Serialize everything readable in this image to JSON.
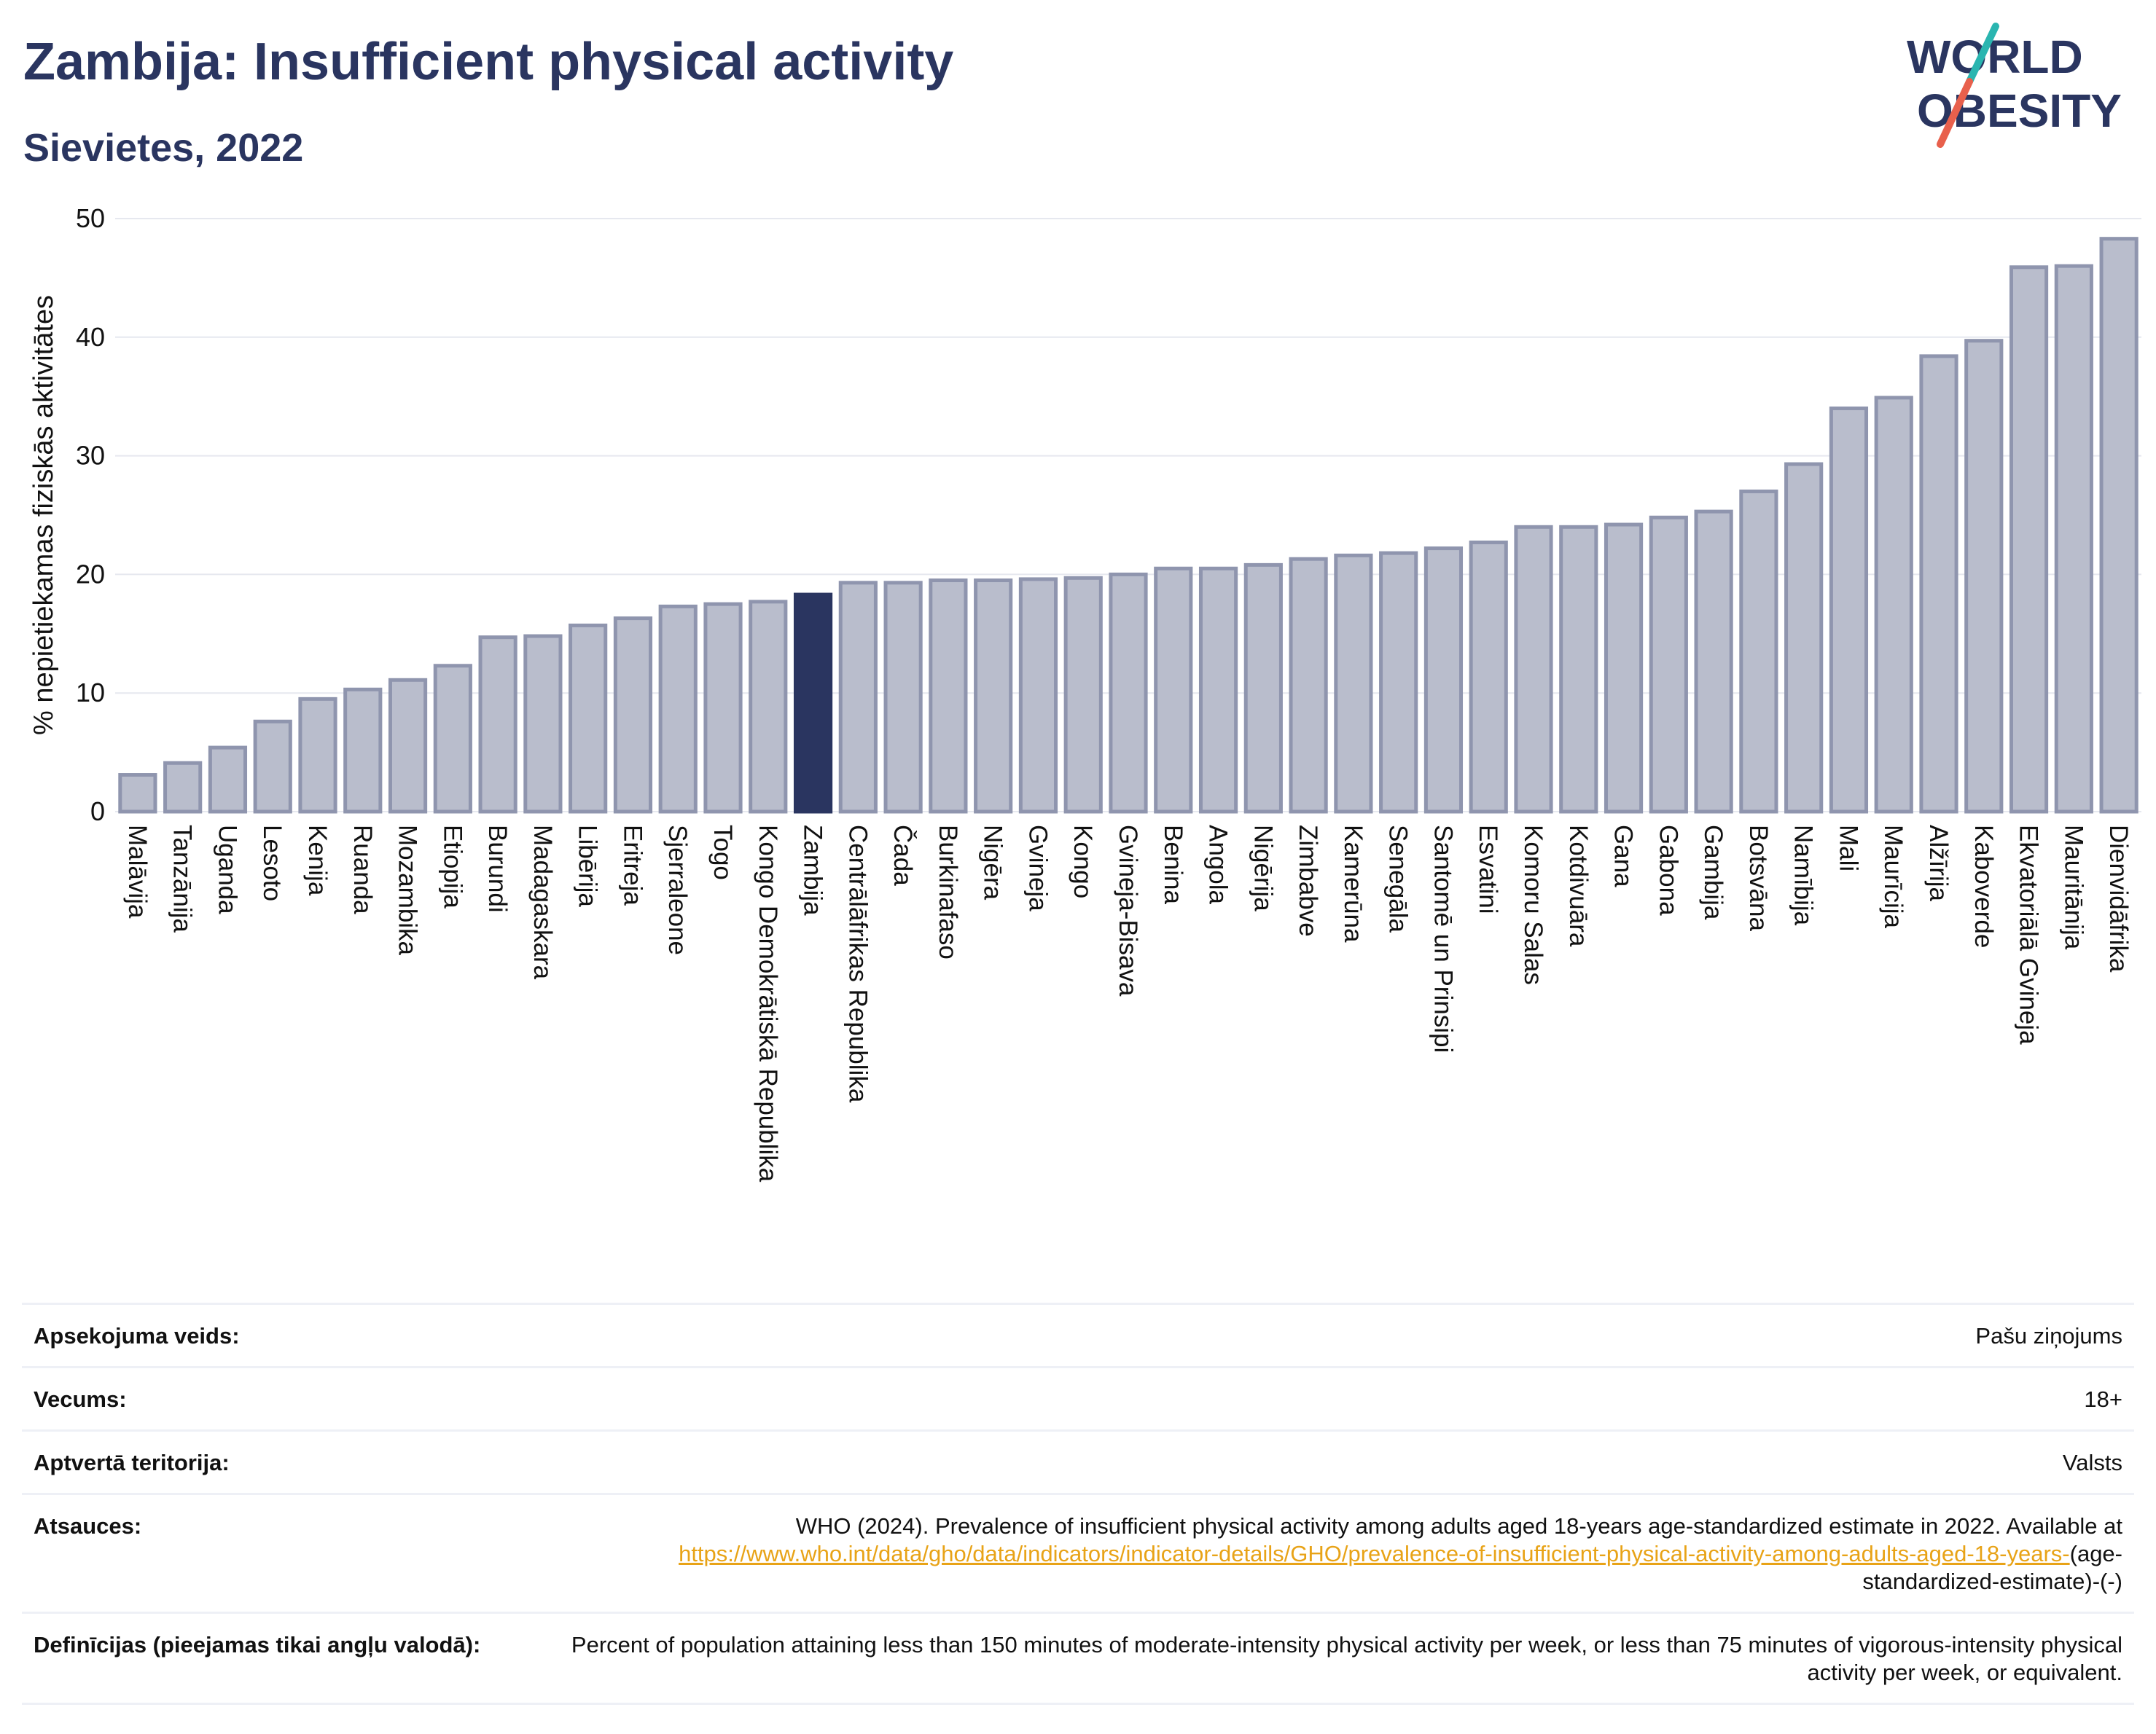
{
  "header": {
    "title": "Zambija: Insufficient physical activity",
    "subtitle": "Sievietes, 2022"
  },
  "logo": {
    "line1": "WORLD",
    "line2": "OBESITY",
    "slash_colors": [
      "#2ab5b0",
      "#e8604c"
    ]
  },
  "chart_data": {
    "type": "bar",
    "title": "Zambija: Insufficient physical activity",
    "subtitle": "Sievietes, 2022",
    "xlabel": "",
    "ylabel": "% nepietiekamas fiziskās aktivitātes",
    "ylim": [
      0,
      50
    ],
    "yticks": [
      0,
      10,
      20,
      30,
      40,
      50
    ],
    "grid": true,
    "highlight": "Zambija",
    "colors": {
      "bar": "#b9bdcc",
      "bar_edge": "#8f95ae",
      "highlight": "#2a3560"
    },
    "categories": [
      "Malāvija",
      "Tanzānija",
      "Uganda",
      "Lesoto",
      "Kenija",
      "Ruanda",
      "Mozambika",
      "Etiopija",
      "Burundi",
      "Madagaskara",
      "Libērija",
      "Eritreja",
      "Sjerraleone",
      "Togo",
      "Kongo Demokrātiskā Republika",
      "Zambija",
      "Centrālāfrikas Republika",
      "Čada",
      "Burkinafaso",
      "Nigēra",
      "Gvineja",
      "Kongo",
      "Gvineja-Bisava",
      "Benina",
      "Angola",
      "Nigērija",
      "Zimbabve",
      "Kamerūna",
      "Senegāla",
      "Santomē un Prinsipi",
      "Esvatini",
      "Komoru Salas",
      "Kotdivuāra",
      "Gana",
      "Gabona",
      "Gambija",
      "Botsvāna",
      "Namībija",
      "Mali",
      "Maurīcija",
      "Alžīrija",
      "Kaboverde",
      "Ekvatoriālā Gvineja",
      "Mauritānija",
      "Dienvidāfrika"
    ],
    "values": [
      3.1,
      4.1,
      5.4,
      7.6,
      9.5,
      10.3,
      11.1,
      12.3,
      14.7,
      14.8,
      15.7,
      16.3,
      17.3,
      17.5,
      17.7,
      18.3,
      19.3,
      19.3,
      19.5,
      19.5,
      19.6,
      19.7,
      20.0,
      20.5,
      20.5,
      20.8,
      21.3,
      21.6,
      21.8,
      22.2,
      22.7,
      24.0,
      24.0,
      24.2,
      24.8,
      25.3,
      27.0,
      29.3,
      34.0,
      34.9,
      38.4,
      39.7,
      45.9,
      46.0,
      48.3
    ]
  },
  "metadata": [
    {
      "label": "Apsekojuma veids:",
      "value": "Pašu ziņojums"
    },
    {
      "label": "Vecums:",
      "value": "18+"
    },
    {
      "label": "Aptvertā teritorija:",
      "value": "Valsts"
    },
    {
      "label": "Atsauces:",
      "value": "WHO (2024). Prevalence of insufficient physical activity among adults aged 18-years age-standardized estimate in 2022. Available at",
      "link": "https://www.who.int/data/gho/data/indicators/indicator-details/GHO/prevalence-of-insufficient-physical-activity-among-adults-aged-18-years-",
      "suffix": "(age-standardized-estimate)-(-)"
    },
    {
      "label": "Definīcijas (pieejamas tikai angļu valodā):",
      "value": "Percent of population attaining less than 150 minutes of moderate-intensity physical activity per week, or less than 75 minutes of vigorous-intensity physical activity per week, or equivalent."
    }
  ]
}
